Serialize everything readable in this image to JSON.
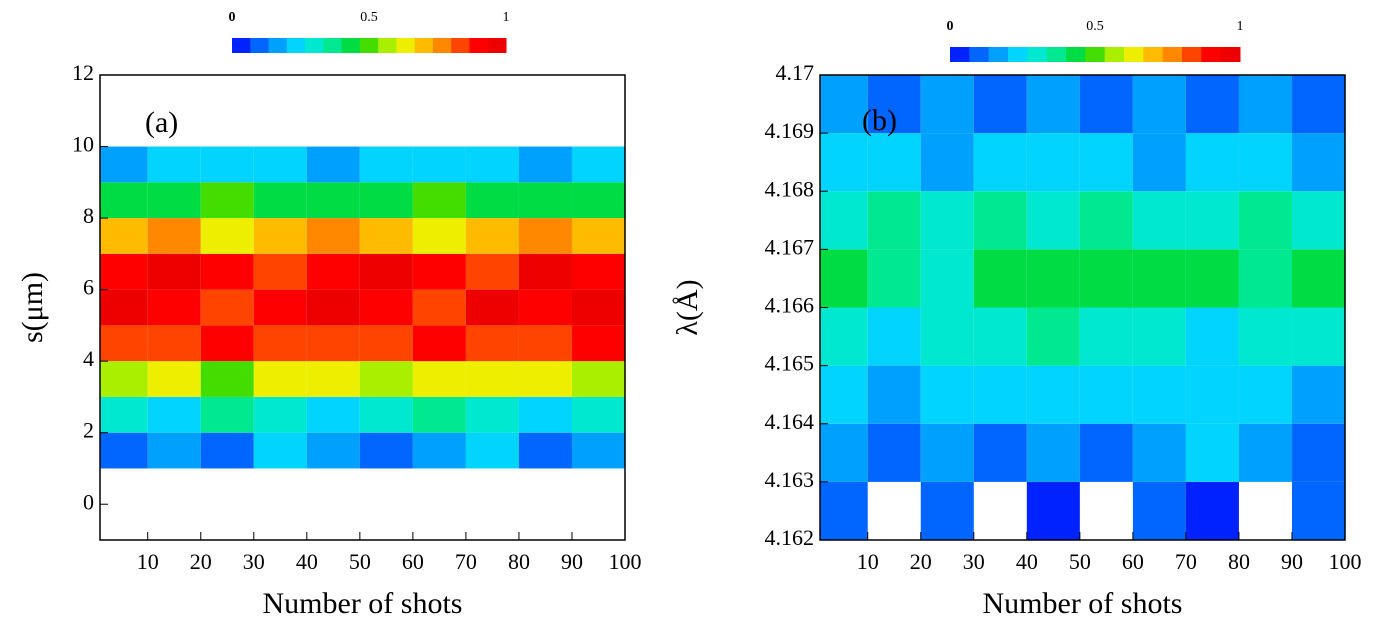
{
  "chart_data": [
    {
      "type": "contour",
      "annotation": "(a)",
      "x_label": "Number of shots",
      "y_label": "s(μm)",
      "xlim": [
        1,
        100
      ],
      "ylim": [
        -1,
        12
      ],
      "xticks": [
        10,
        20,
        30,
        40,
        50,
        60,
        70,
        80,
        90,
        100
      ],
      "yticks": [
        0,
        2,
        4,
        6,
        8,
        10,
        12
      ],
      "colorbar": {
        "ticks": [
          0,
          0.5,
          1
        ],
        "colors": [
          "#0022ff",
          "#0066ff",
          "#00a0ff",
          "#00d4ff",
          "#00e8d0",
          "#00e890",
          "#00dd44",
          "#44dd00",
          "#aaee00",
          "#eeee00",
          "#ffbb00",
          "#ff8800",
          "#ff4400",
          "#ff0000",
          "#ee0000"
        ]
      },
      "x": [
        5,
        15,
        25,
        35,
        45,
        55,
        65,
        75,
        85,
        95
      ],
      "y": [
        1.5,
        2.5,
        3.5,
        4.5,
        5.5,
        6.5,
        7.5,
        8.5,
        9.5
      ],
      "z": [
        [
          0.1,
          0.15,
          0.1,
          0.2,
          0.15,
          0.1,
          0.15,
          0.2,
          0.1,
          0.15
        ],
        [
          0.3,
          0.25,
          0.35,
          0.3,
          0.25,
          0.3,
          0.35,
          0.3,
          0.25,
          0.3
        ],
        [
          0.55,
          0.6,
          0.5,
          0.65,
          0.6,
          0.55,
          0.6,
          0.65,
          0.6,
          0.55
        ],
        [
          0.85,
          0.8,
          0.9,
          0.85,
          0.8,
          0.85,
          0.9,
          0.8,
          0.85,
          0.9
        ],
        [
          0.95,
          0.9,
          0.85,
          0.9,
          0.95,
          0.9,
          0.85,
          0.95,
          0.9,
          0.95
        ],
        [
          0.9,
          0.95,
          0.9,
          0.85,
          0.9,
          0.95,
          0.9,
          0.85,
          0.95,
          0.9
        ],
        [
          0.7,
          0.75,
          0.65,
          0.7,
          0.75,
          0.7,
          0.65,
          0.7,
          0.75,
          0.7
        ],
        [
          0.45,
          0.4,
          0.5,
          0.45,
          0.4,
          0.45,
          0.5,
          0.45,
          0.4,
          0.45
        ],
        [
          0.15,
          0.2,
          0.25,
          0.2,
          0.15,
          0.2,
          0.25,
          0.2,
          0.15,
          0.2
        ]
      ]
    },
    {
      "type": "contour",
      "annotation": "(b)",
      "x_label": "Number of shots",
      "y_label": "λ(Å)",
      "xlim": [
        1,
        100
      ],
      "ylim": [
        4.162,
        4.17
      ],
      "xticks": [
        10,
        20,
        30,
        40,
        50,
        60,
        70,
        80,
        90,
        100
      ],
      "yticks": [
        4.162,
        4.163,
        4.164,
        4.165,
        4.166,
        4.167,
        4.168,
        4.169,
        4.17
      ],
      "colorbar": {
        "ticks": [
          0,
          0.5,
          1
        ],
        "colors": [
          "#0022ff",
          "#0066ff",
          "#00a0ff",
          "#00d4ff",
          "#00e8d0",
          "#00e890",
          "#00dd44",
          "#44dd00",
          "#aaee00",
          "#eeee00",
          "#ffbb00",
          "#ff8800",
          "#ff4400",
          "#ff0000",
          "#ee0000"
        ]
      },
      "x": [
        5,
        15,
        25,
        35,
        45,
        55,
        65,
        75,
        85,
        95
      ],
      "y": [
        4.1625,
        4.1635,
        4.1645,
        4.1655,
        4.1665,
        4.1675,
        4.1685,
        4.1695
      ],
      "z": [
        [
          0.1,
          null,
          0.1,
          null,
          0.05,
          null,
          0.1,
          0.05,
          null,
          0.1
        ],
        [
          0.15,
          0.1,
          0.15,
          0.1,
          0.15,
          0.1,
          0.15,
          0.2,
          0.15,
          0.1
        ],
        [
          0.2,
          0.15,
          0.2,
          0.25,
          0.2,
          0.2,
          0.25,
          0.2,
          0.2,
          0.15
        ],
        [
          0.3,
          0.25,
          0.3,
          0.3,
          0.35,
          0.3,
          0.3,
          0.25,
          0.3,
          0.3
        ],
        [
          0.4,
          0.35,
          0.3,
          0.4,
          0.45,
          0.4,
          0.45,
          0.4,
          0.35,
          0.4
        ],
        [
          0.3,
          0.35,
          0.3,
          0.35,
          0.3,
          0.35,
          0.3,
          0.3,
          0.35,
          0.3
        ],
        [
          0.2,
          0.2,
          0.15,
          0.2,
          0.25,
          0.2,
          0.15,
          0.2,
          0.2,
          0.15
        ],
        [
          0.15,
          0.1,
          0.15,
          0.1,
          0.15,
          0.1,
          0.15,
          0.1,
          0.15,
          0.1
        ]
      ]
    }
  ]
}
